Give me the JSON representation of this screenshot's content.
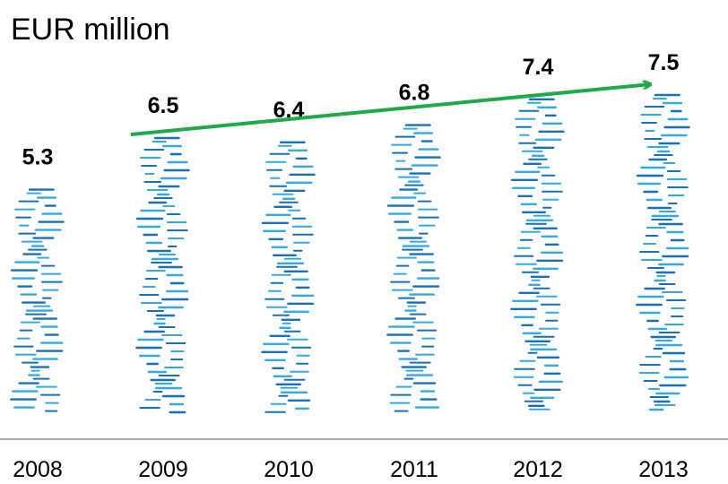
{
  "chart_data": {
    "type": "bar",
    "ylabel": "EUR million",
    "categories": [
      "2008",
      "2009",
      "2010",
      "2011",
      "2012",
      "2013"
    ],
    "values": [
      5.3,
      6.5,
      6.4,
      6.8,
      7.4,
      7.5
    ],
    "ylim": [
      0,
      7.5
    ],
    "grid": false,
    "trend_arrow": {
      "from": "2009",
      "to": "2013"
    }
  },
  "colors": {
    "bar_dark": "#1b6fb5",
    "bar_light": "#37a8e0",
    "arrow": "#1faa4a",
    "baseline": "#a9aeb4"
  }
}
